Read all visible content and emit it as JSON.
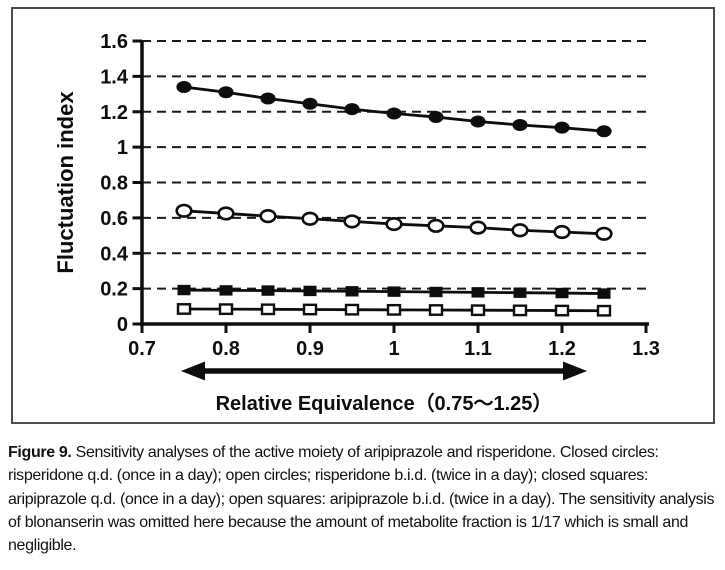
{
  "caption": {
    "label": "Figure 9.",
    "text": " Sensitivity analyses of the active moiety of aripiprazole and risperidone. Closed circles: risperidone q.d. (once in a day); open circles; risperidone b.i.d. (twice in a day); closed squares: aripiprazole q.d. (once in a day); open squares: aripiprazole b.i.d. (twice in a day). The sensitivity analysis of blonanserin was omitted here because the amount of metabolite fraction is 1/17 which is small and negligible."
  },
  "chart_data": {
    "type": "line",
    "title": "",
    "ylabel": "Fluctuation index",
    "xlabel": "",
    "annotation": {
      "text": "Relative Equivalence（0.75～1.25）",
      "x_from": 0.75,
      "x_to": 1.25,
      "style": "double-headed-arrow below x-axis"
    },
    "xlim": [
      0.7,
      1.3
    ],
    "ylim": [
      0,
      1.6
    ],
    "x_ticks": [
      0.7,
      0.8,
      0.9,
      1,
      1.1,
      1.2,
      1.3
    ],
    "y_ticks": [
      0,
      0.2,
      0.4,
      0.6,
      0.8,
      1,
      1.2,
      1.4,
      1.6
    ],
    "grid": "horizontal dashed black lines at each y tick above 0",
    "legend_position": "none (series described in caption)",
    "ink_color": "#0d0d0d",
    "x": [
      0.75,
      0.8,
      0.85,
      0.9,
      0.95,
      1,
      1.05,
      1.1,
      1.15,
      1.2,
      1.25
    ],
    "series": [
      {
        "name": "risperidone q.d. (once in a day)",
        "marker": "closed-circle",
        "values": [
          1.34,
          1.31,
          1.275,
          1.245,
          1.215,
          1.19,
          1.17,
          1.145,
          1.125,
          1.11,
          1.09
        ]
      },
      {
        "name": "risperidone b.i.d. (twice in a day)",
        "marker": "open-circle",
        "values": [
          0.64,
          0.625,
          0.61,
          0.595,
          0.58,
          0.565,
          0.555,
          0.545,
          0.53,
          0.52,
          0.51
        ]
      },
      {
        "name": "aripiprazole q.d. (once in a day)",
        "marker": "closed-square",
        "values": [
          0.192,
          0.19,
          0.189,
          0.187,
          0.185,
          0.183,
          0.181,
          0.179,
          0.177,
          0.175,
          0.172
        ]
      },
      {
        "name": "aripiprazole b.i.d. (twice in a day)",
        "marker": "open-square",
        "values": [
          0.085,
          0.084,
          0.083,
          0.082,
          0.081,
          0.08,
          0.079,
          0.078,
          0.077,
          0.076,
          0.075
        ]
      }
    ]
  }
}
